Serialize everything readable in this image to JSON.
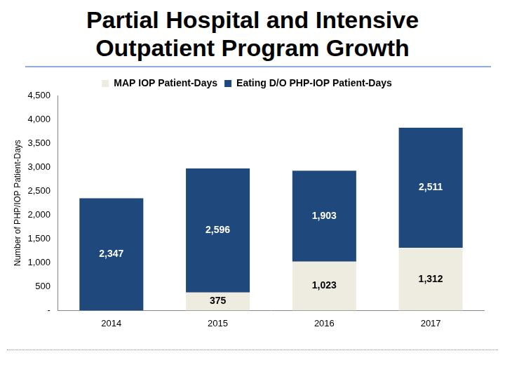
{
  "chart_data": {
    "type": "bar",
    "title": "Partial Hospital and Intensive Outpatient Program Growth",
    "y_label": "Number of PHP/IOP Patient-Days",
    "categories": [
      "2014",
      "2015",
      "2016",
      "2017"
    ],
    "series": [
      {
        "name": "MAP IOP Patient-Days",
        "color": "#eeece1",
        "values": [
          null,
          375,
          1023,
          1312
        ],
        "value_labels": [
          null,
          "375",
          "1,023",
          "1,312"
        ]
      },
      {
        "name": "Eating D/O PHP-IOP Patient-Days",
        "color": "#1f497d",
        "values": [
          2347,
          2596,
          1903,
          2511
        ],
        "value_labels": [
          "2,347",
          "2,596",
          "1,903",
          "2,511"
        ]
      }
    ],
    "stacked": true,
    "data_labels": true,
    "legend": "top",
    "grid": false,
    "ylim": [
      0,
      4500
    ],
    "yticks": [
      {
        "value": 0,
        "label": "-"
      },
      500,
      {
        "value": 1000,
        "label": "1,000"
      },
      {
        "value": 1500,
        "label": "1,500"
      },
      {
        "value": 2000,
        "label": "2,000"
      },
      {
        "value": 2500,
        "label": "2,500"
      },
      {
        "value": 3000,
        "label": "3,000"
      },
      {
        "value": 3500,
        "label": "3,500"
      },
      {
        "value": 4000,
        "label": "4,000"
      },
      {
        "value": 4500,
        "label": "4,500"
      }
    ]
  }
}
